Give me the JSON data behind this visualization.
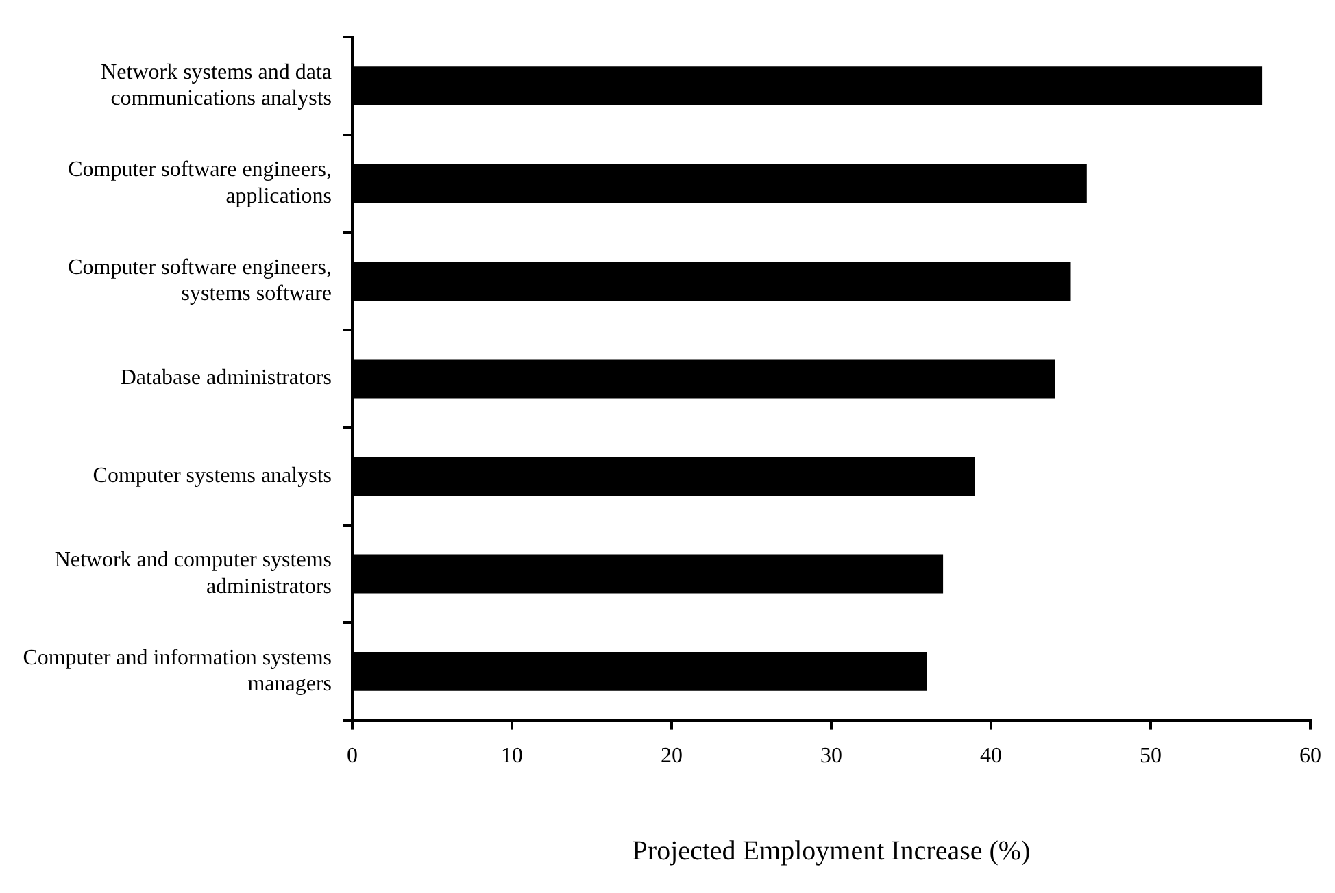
{
  "chart_data": {
    "type": "bar",
    "orientation": "horizontal",
    "xlabel": "Projected Employment Increase (%)",
    "categories": [
      "Network systems and data communications analysts",
      "Computer software engineers, applications",
      "Computer software engineers, systems software",
      "Database administrators",
      "Computer systems analysts",
      "Network and computer systems administrators",
      "Computer and information systems managers"
    ],
    "values": [
      57,
      46,
      45,
      44,
      39,
      37,
      36
    ],
    "color": "#000000",
    "xlim": [
      0,
      60
    ],
    "xticks": [
      0,
      10,
      20,
      30,
      40,
      50,
      60
    ],
    "grid": false,
    "legend": false
  }
}
